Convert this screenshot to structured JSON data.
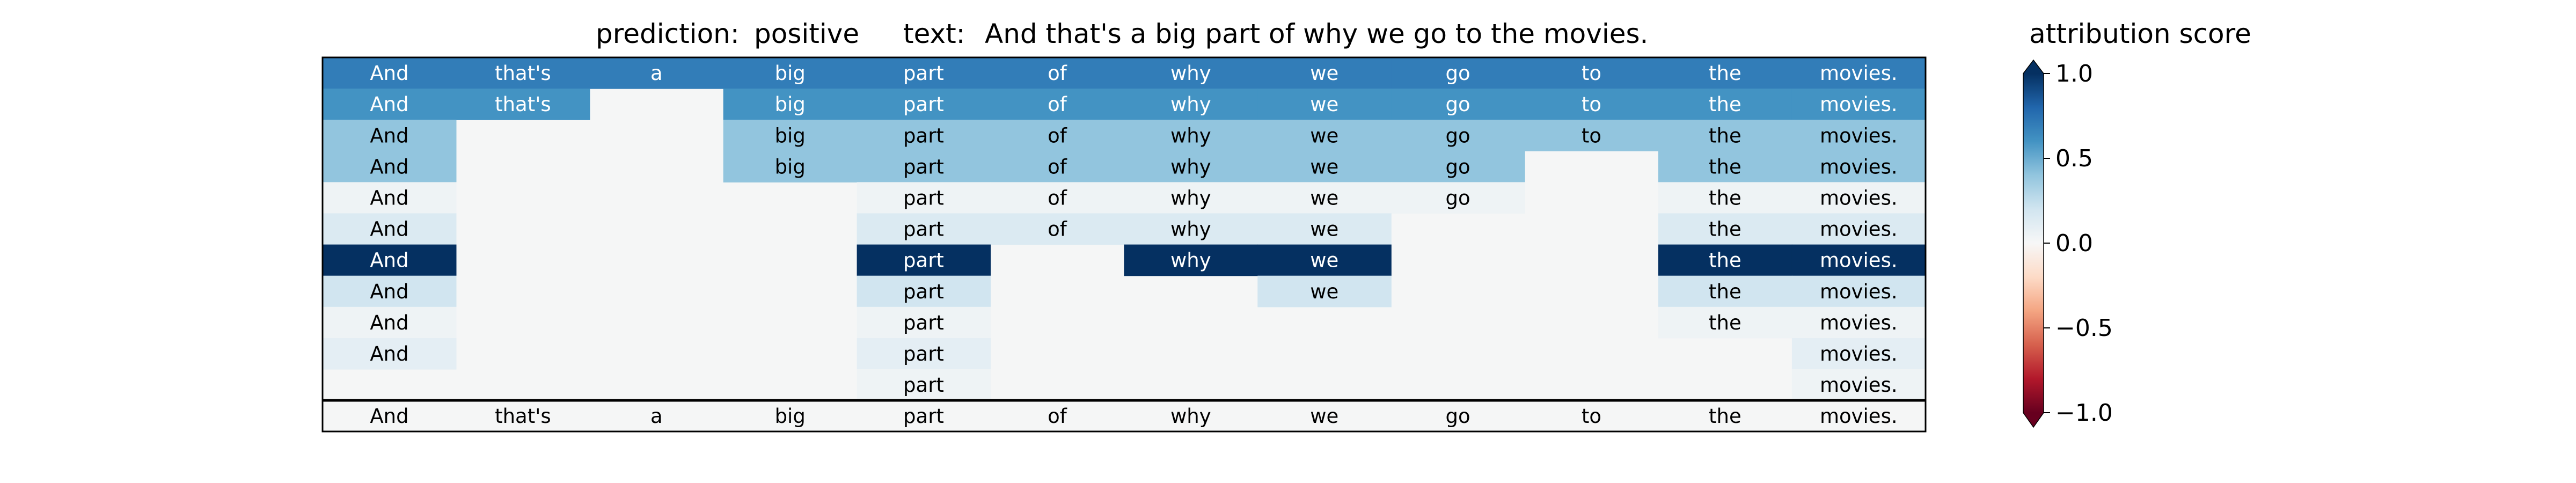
{
  "chart_data": {
    "type": "heatmap",
    "prediction_label": "prediction:",
    "prediction": "positive",
    "text_label": "text:",
    "text": "And that's a big part of why we go to the movies.",
    "colorbar_title": "attribution score",
    "tokens": [
      "And",
      "that's",
      "a",
      "big",
      "part",
      "of",
      "why",
      "we",
      "go",
      "to",
      "the",
      "movies."
    ],
    "colorbar": {
      "range": [
        -1.0,
        1.0
      ],
      "ticks": [
        1.0,
        0.5,
        0.0,
        -0.5,
        -1.0
      ],
      "tick_labels": [
        "1.0",
        "0.5",
        "0.0",
        "−0.5",
        "−1.0"
      ],
      "colormap": "RdBu",
      "extend": "both"
    },
    "rows": [
      [
        0.7,
        0.7,
        0.7,
        0.7,
        0.7,
        0.7,
        0.7,
        0.7,
        0.7,
        0.7,
        0.7,
        0.7
      ],
      [
        0.6,
        0.6,
        null,
        0.6,
        0.6,
        0.6,
        0.6,
        0.6,
        0.6,
        0.6,
        0.6,
        0.6
      ],
      [
        0.4,
        null,
        null,
        0.4,
        0.4,
        0.4,
        0.4,
        0.4,
        0.4,
        0.4,
        0.4,
        0.4
      ],
      [
        0.4,
        null,
        null,
        0.4,
        0.4,
        0.4,
        0.4,
        0.4,
        0.4,
        null,
        0.4,
        0.4
      ],
      [
        0.05,
        null,
        null,
        null,
        0.05,
        0.05,
        0.05,
        0.05,
        0.05,
        null,
        0.05,
        0.05
      ],
      [
        0.15,
        null,
        null,
        null,
        0.15,
        0.15,
        0.15,
        0.15,
        null,
        null,
        0.15,
        0.15
      ],
      [
        1.0,
        null,
        null,
        null,
        1.0,
        null,
        1.0,
        1.0,
        null,
        null,
        1.0,
        1.0
      ],
      [
        0.2,
        null,
        null,
        null,
        0.2,
        null,
        null,
        0.2,
        null,
        null,
        0.2,
        0.2
      ],
      [
        0.05,
        null,
        null,
        null,
        0.05,
        null,
        null,
        null,
        null,
        null,
        0.05,
        0.05
      ],
      [
        0.1,
        null,
        null,
        null,
        0.1,
        null,
        null,
        null,
        null,
        null,
        null,
        0.1
      ],
      [
        null,
        null,
        null,
        null,
        0.05,
        null,
        null,
        null,
        null,
        null,
        null,
        0.05
      ]
    ]
  }
}
